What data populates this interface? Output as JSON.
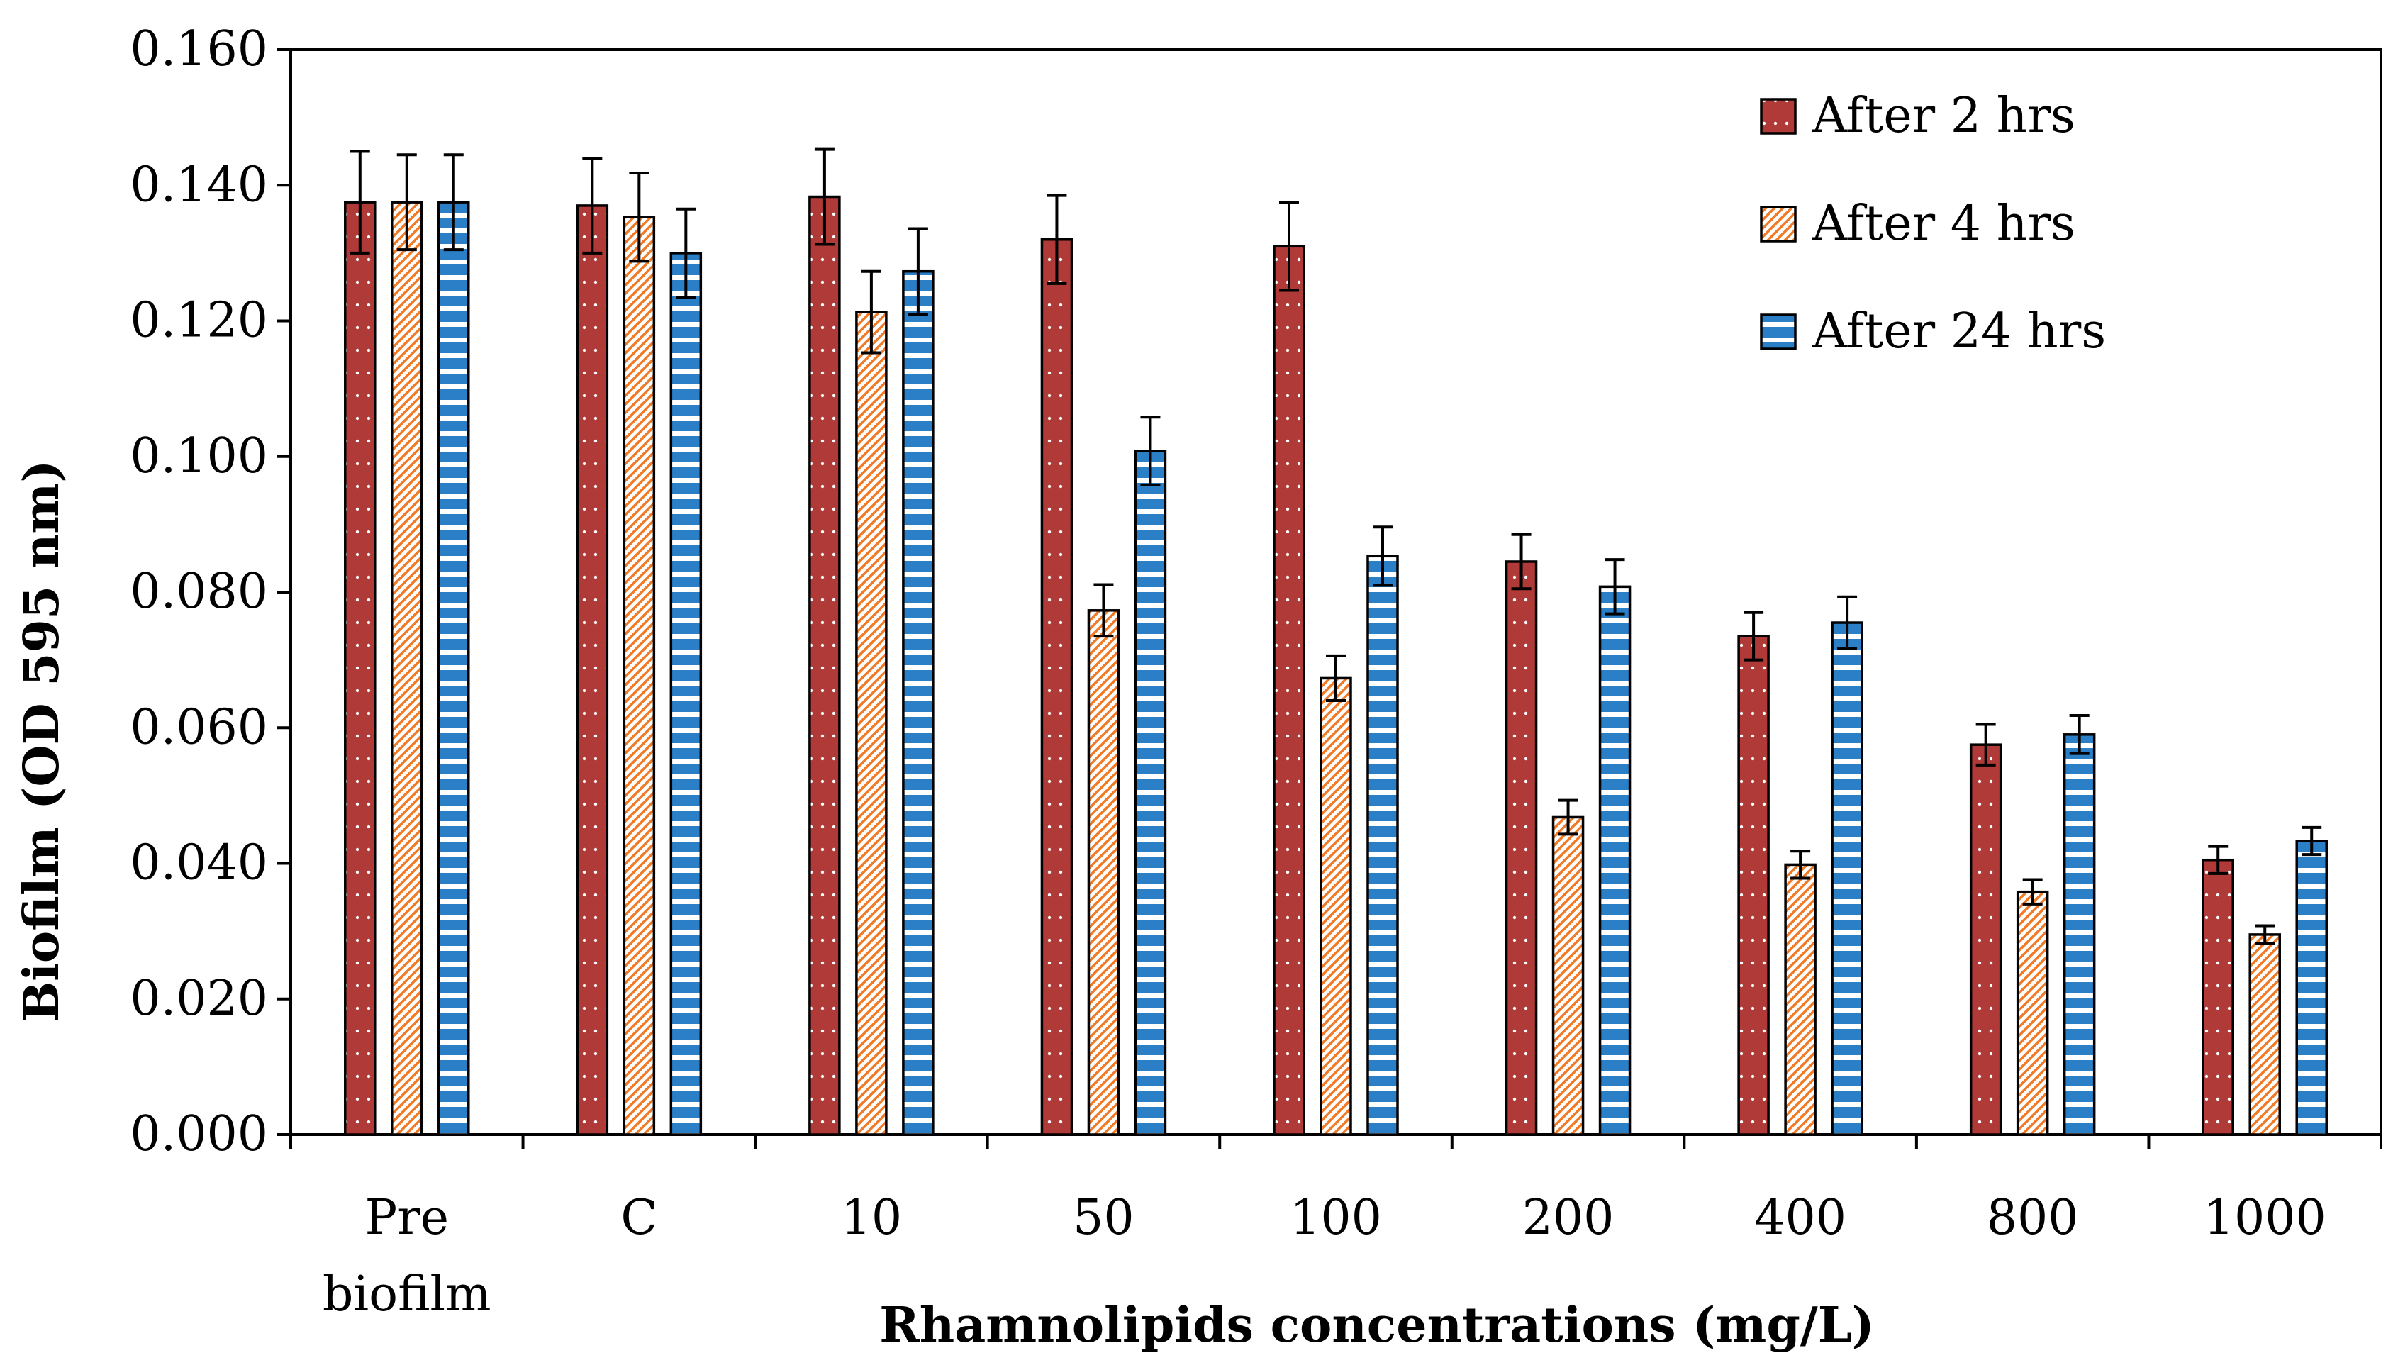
{
  "chart_data": {
    "type": "bar",
    "title": "",
    "xlabel": "Rhamnolipids concentrations (mg/L)",
    "ylabel": "Biofilm (OD 595 nm)",
    "ylim": [
      0,
      0.16
    ],
    "yticks": [
      "0.000",
      "0.020",
      "0.040",
      "0.060",
      "0.080",
      "0.100",
      "0.120",
      "0.140",
      "0.160"
    ],
    "categories": [
      [
        "Pre",
        "biofilm"
      ],
      [
        "C"
      ],
      [
        "10"
      ],
      [
        "50"
      ],
      [
        "100"
      ],
      [
        "200"
      ],
      [
        "400"
      ],
      [
        "800"
      ],
      [
        "1000"
      ]
    ],
    "legend_position": "top-right",
    "series": [
      {
        "name": "After 2 hrs",
        "color": "#B03A38",
        "pattern": "dots",
        "values": [
          0.1375,
          0.137,
          0.1383,
          0.132,
          0.131,
          0.0845,
          0.0735,
          0.0575,
          0.0405
        ],
        "errors": [
          0.0075,
          0.007,
          0.007,
          0.0065,
          0.0065,
          0.004,
          0.0035,
          0.003,
          0.002
        ]
      },
      {
        "name": "After 4 hrs",
        "color": "#F07A26",
        "pattern": "diagonal",
        "values": [
          0.1375,
          0.1353,
          0.1213,
          0.0773,
          0.0673,
          0.0468,
          0.0398,
          0.0358,
          0.0295
        ],
        "errors": [
          0.007,
          0.0065,
          0.006,
          0.0038,
          0.0033,
          0.0025,
          0.002,
          0.0018,
          0.0013
        ]
      },
      {
        "name": "After 24 hrs",
        "color": "#2A7FC6",
        "pattern": "horizontal",
        "values": [
          0.1375,
          0.13,
          0.1273,
          0.1008,
          0.0853,
          0.0808,
          0.0755,
          0.059,
          0.0433
        ],
        "errors": [
          0.007,
          0.0065,
          0.0063,
          0.005,
          0.0043,
          0.004,
          0.0038,
          0.0028,
          0.002
        ]
      }
    ]
  }
}
